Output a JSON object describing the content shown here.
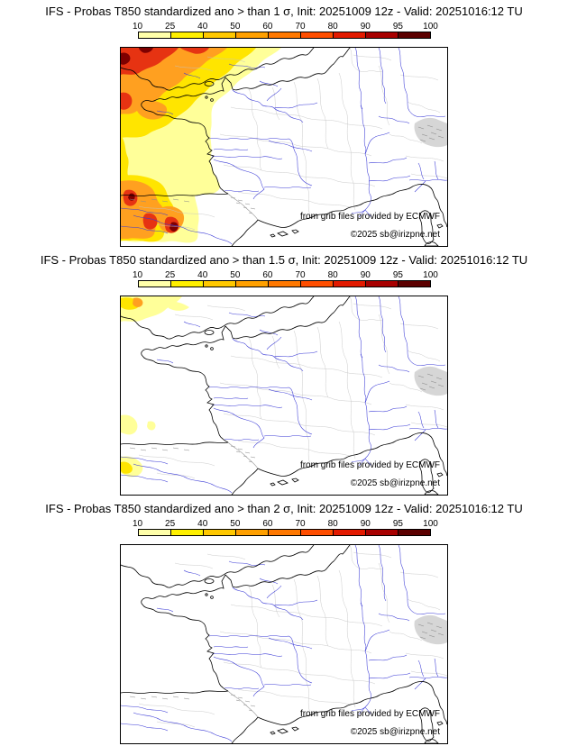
{
  "panels": [
    {
      "sigma": "1",
      "title": "IFS - Probas T850  standardized ano > than 1 σ, Init: 20251009 12z - Valid: 20251016:12 TU"
    },
    {
      "sigma": "1.5",
      "title": "IFS - Probas T850  standardized ano > than 1.5 σ, Init: 20251009 12z - Valid: 20251016:12 TU"
    },
    {
      "sigma": "2",
      "title": "IFS - Probas T850  standardized ano > than 2 σ, Init: 20251009 12z - Valid: 20251016:12 TU"
    }
  ],
  "colorbar": {
    "tick_labels": [
      "10",
      "25",
      "40",
      "50",
      "60",
      "70",
      "80",
      "90",
      "95",
      "100"
    ],
    "segment_colors": [
      "#FFFFAA",
      "#FFF000",
      "#FFC800",
      "#FFA000",
      "#FF7800",
      "#FF4E00",
      "#E31A00",
      "#A80000",
      "#5C0000"
    ]
  },
  "map": {
    "credit_line1": "from grib files provided by ECMWF",
    "credit_line2": "©2025 sb@irizpne.net"
  },
  "palette": {
    "pale_yellow": "#FFFF99",
    "yellow": "#FFE500",
    "orange": "#FFA020",
    "red": "#E63312",
    "dark_red": "#7E0000",
    "coastline_black": "#000000",
    "river_blue": "#3A3AD6",
    "admin_gray": "#C4C4C4",
    "border_gray": "#999999",
    "terrain_gray": "#D6D6D6",
    "mountain_gray": "#8A8A8A"
  }
}
